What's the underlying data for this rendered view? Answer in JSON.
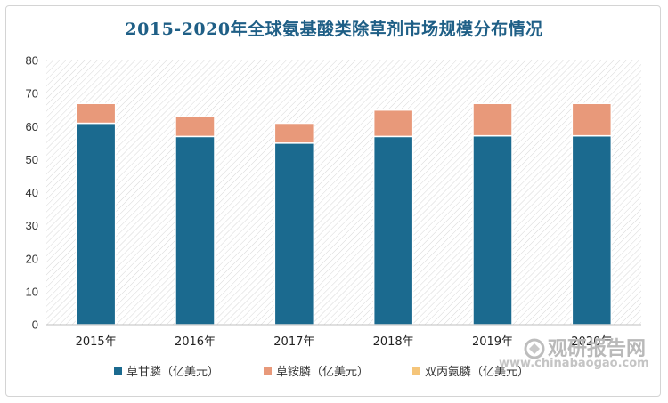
{
  "chart_data": {
    "type": "bar",
    "stacked": true,
    "title": "2015-2020年全球氨基酸类除草剂市场规模分布情况",
    "categories": [
      "2015年",
      "2016年",
      "2017年",
      "2018年",
      "2019年",
      "2020年"
    ],
    "series": [
      {
        "name": "草甘膦（亿美元）",
        "color": "#1b6a8f",
        "values": [
          61,
          57,
          55,
          57,
          57.2,
          57.2
        ]
      },
      {
        "name": "草铵膦（亿美元）",
        "color": "#e8997a",
        "values": [
          6,
          6,
          6,
          8,
          9.8,
          9.8
        ]
      },
      {
        "name": "双丙氨膦（亿美元）",
        "color": "#f5c57a",
        "values": [
          0,
          0,
          0,
          0,
          0,
          0
        ]
      }
    ],
    "ylim": [
      0,
      80
    ],
    "yticks": [
      0,
      10,
      20,
      30,
      40,
      50,
      60,
      70,
      80
    ],
    "xlabel": "",
    "ylabel": "",
    "grid": false,
    "legend_position": "bottom"
  },
  "watermark": {
    "text": "观研报告网",
    "url": "www.chinabaogao.com"
  }
}
